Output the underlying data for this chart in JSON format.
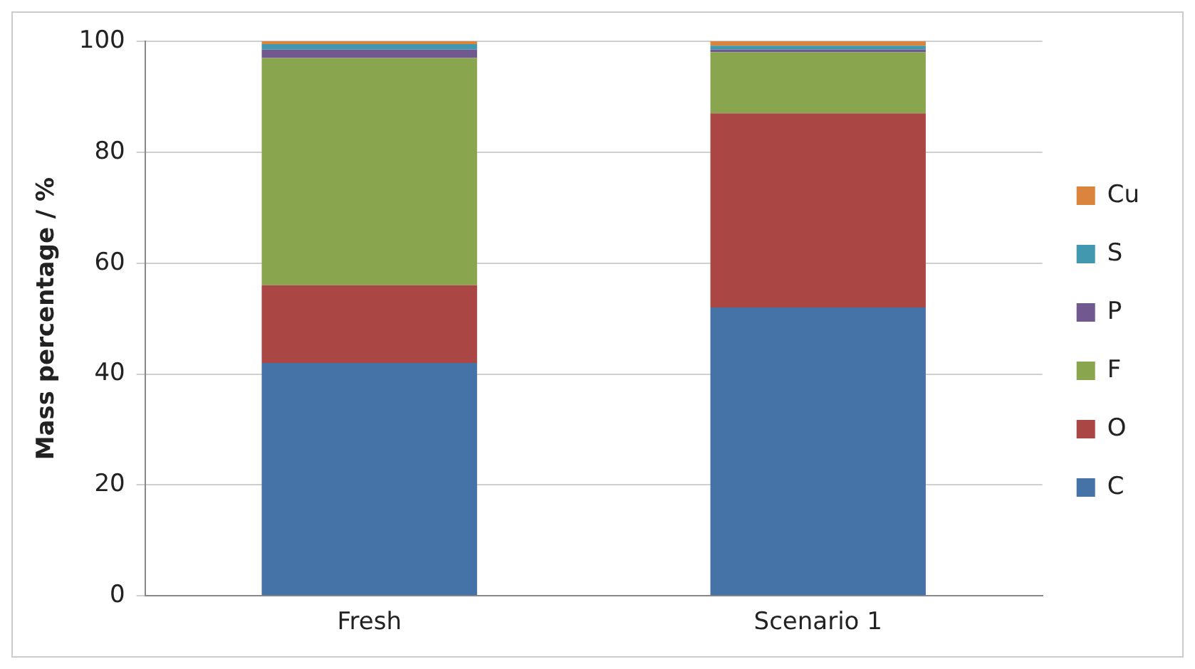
{
  "chart_data": {
    "type": "bar",
    "stacked": true,
    "categories": [
      "Fresh",
      "Scenario 1"
    ],
    "ylabel": "Mass percentage / %",
    "ylim": [
      0,
      100
    ],
    "yticks": [
      0,
      20,
      40,
      60,
      80,
      100
    ],
    "grid": "y",
    "legend": "right",
    "series": [
      {
        "name": "C",
        "color": "#4572a7",
        "values": [
          42,
          52
        ]
      },
      {
        "name": "O",
        "color": "#aa4643",
        "values": [
          14,
          35
        ]
      },
      {
        "name": "F",
        "color": "#89a54e",
        "values": [
          41,
          11
        ]
      },
      {
        "name": "P",
        "color": "#71588f",
        "values": [
          1.5,
          0.5
        ]
      },
      {
        "name": "S",
        "color": "#4198af",
        "values": [
          1,
          0.7
        ]
      },
      {
        "name": "Cu",
        "color": "#db843d",
        "values": [
          0.5,
          0.8
        ]
      }
    ]
  }
}
